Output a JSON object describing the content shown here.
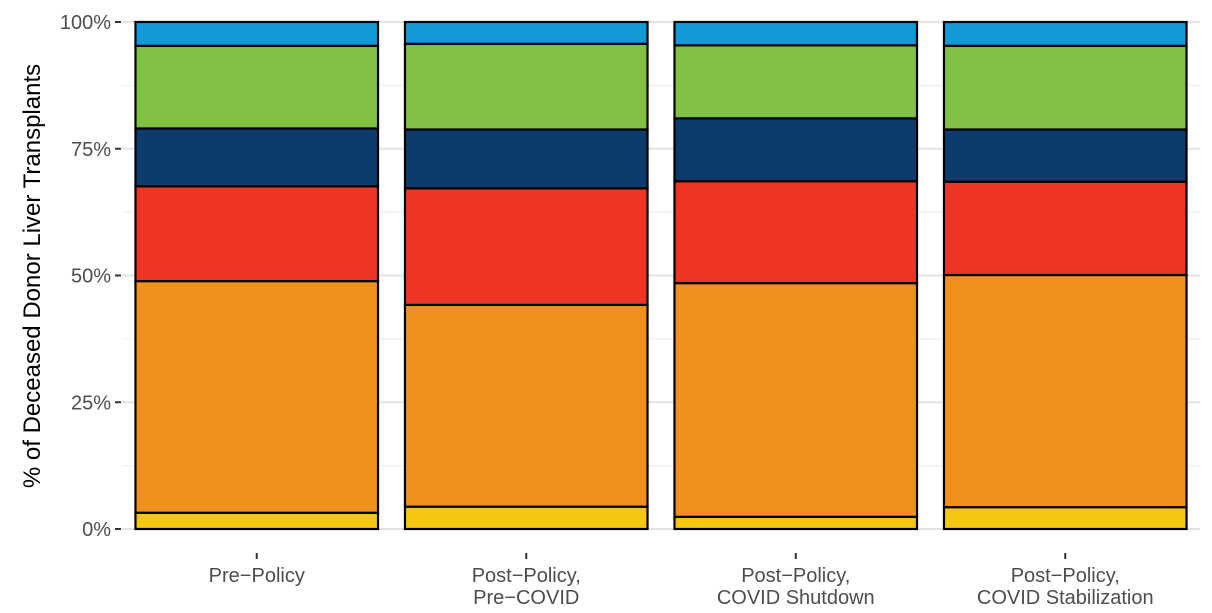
{
  "chart_data": {
    "type": "bar",
    "stacked": true,
    "percent": true,
    "ylabel": "% of Deceased Donor Liver Transplants",
    "xlabel": "",
    "ylim": [
      0,
      100
    ],
    "y_ticks": [
      0,
      25,
      50,
      75,
      100
    ],
    "y_tick_labels": [
      "0%",
      "25%",
      "50%",
      "75%",
      "100%"
    ],
    "grid": true,
    "legend": "none",
    "categories": [
      [
        "Pre−Policy"
      ],
      [
        "Post−Policy,",
        "Pre−COVID"
      ],
      [
        "Post−Policy,",
        "COVID Shutdown"
      ],
      [
        "Post−Policy,",
        "COVID Stabilization"
      ]
    ],
    "series": [
      {
        "color": "#F5C710",
        "values": [
          3.2,
          4.4,
          2.4,
          4.3
        ]
      },
      {
        "color": "#F0911E",
        "values": [
          45.7,
          39.8,
          46.1,
          45.8
        ]
      },
      {
        "color": "#EE3524",
        "values": [
          18.7,
          23.0,
          20.1,
          18.4
        ]
      },
      {
        "color": "#0C3B6C",
        "values": [
          11.4,
          11.6,
          12.4,
          10.3
        ]
      },
      {
        "color": "#80C144",
        "values": [
          16.3,
          16.9,
          14.4,
          16.5
        ]
      },
      {
        "color": "#1199D8",
        "values": [
          4.7,
          4.3,
          4.6,
          4.7
        ]
      }
    ]
  }
}
